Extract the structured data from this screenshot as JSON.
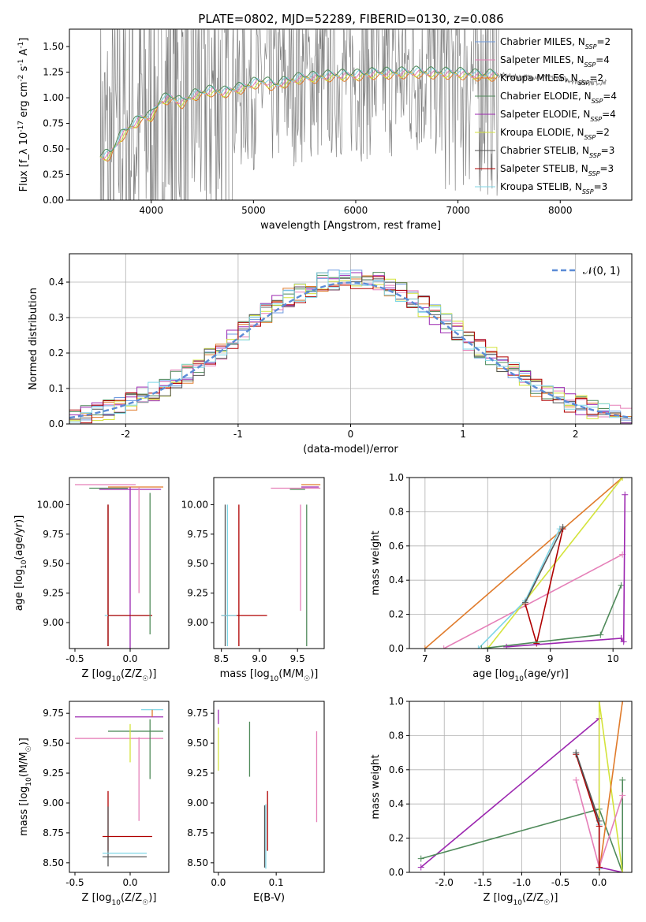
{
  "figure": {
    "title": "PLATE=0802, MJD=52289, FIBERID=0130, z=0.086"
  },
  "colors": {
    "data": "#808080",
    "normal_curve": "#5b8bd6",
    "models": [
      "#6f9be0",
      "#e57fb8",
      "#e07b2b",
      "#4f8a5a",
      "#9c27b0",
      "#d4e33c",
      "#555555",
      "#b00000",
      "#7fd6e6"
    ]
  },
  "chart_data": [
    {
      "id": "spectrum",
      "type": "line",
      "xlabel": "wavelength [Angstrom, rest frame]",
      "ylabel": "Flux [f_λ 10^-17 erg cm^-2 s^-1 A^-1]",
      "xlim": [
        3200,
        8700
      ],
      "ylim": [
        0,
        1.67
      ],
      "xticks": [
        4000,
        5000,
        6000,
        7000,
        8000
      ],
      "yticks": [
        0.0,
        0.25,
        0.5,
        0.75,
        1.0,
        1.25,
        1.5
      ],
      "legend_position": "right",
      "series": [
        {
          "name": "Chabrier MILES, N_SSP=2"
        },
        {
          "name": "Salpeter MILES, N_SSP=4"
        },
        {
          "name": "Kroupa MILES, N_SSP=2"
        },
        {
          "name": "Chabrier ELODIE, N_SSP=4"
        },
        {
          "name": "Salpeter ELODIE, N_SSP=4"
        },
        {
          "name": "Kroupa ELODIE, N_SSP=2"
        },
        {
          "name": "Chabrier STELIB, N_SSP=3"
        },
        {
          "name": "Salpeter STELIB, N_SSP=3"
        },
        {
          "name": "Kroupa STELIB, N_SSP=3"
        }
      ],
      "model_continuum": [
        [
          3500,
          0.42
        ],
        [
          3600,
          0.45
        ],
        [
          3700,
          0.62
        ],
        [
          3800,
          0.72
        ],
        [
          3900,
          0.8
        ],
        [
          4000,
          0.82
        ],
        [
          4100,
          0.98
        ],
        [
          4200,
          1.0
        ],
        [
          4300,
          0.95
        ],
        [
          4400,
          1.02
        ],
        [
          4500,
          1.05
        ],
        [
          4600,
          1.07
        ],
        [
          4700,
          1.05
        ],
        [
          4800,
          1.08
        ],
        [
          4900,
          1.1
        ],
        [
          5000,
          1.14
        ],
        [
          5100,
          1.16
        ],
        [
          5200,
          1.12
        ],
        [
          5300,
          1.15
        ],
        [
          5400,
          1.18
        ],
        [
          5500,
          1.2
        ],
        [
          5600,
          1.2
        ],
        [
          5700,
          1.21
        ],
        [
          5800,
          1.22
        ],
        [
          5900,
          1.22
        ],
        [
          6000,
          1.22
        ],
        [
          6200,
          1.24
        ],
        [
          6400,
          1.24
        ],
        [
          6600,
          1.25
        ],
        [
          6800,
          1.24
        ],
        [
          7000,
          1.24
        ],
        [
          7200,
          1.22
        ],
        [
          7400,
          1.22
        ],
        [
          7600,
          1.2
        ],
        [
          7800,
          1.2
        ],
        [
          8000,
          1.19
        ],
        [
          8200,
          1.15
        ],
        [
          8400,
          1.15
        ]
      ]
    },
    {
      "id": "residuals",
      "type": "line",
      "xlabel": "(data-model)/error",
      "ylabel": "Normed distribution",
      "xlim": [
        -2.5,
        2.5
      ],
      "ylim": [
        0,
        0.48
      ],
      "xticks": [
        -2,
        -1,
        0,
        1,
        2
      ],
      "yticks": [
        0.0,
        0.1,
        0.2,
        0.3,
        0.4
      ],
      "legend": "𝒩(0, 1)",
      "legend_position": "top-right",
      "grid": true
    },
    {
      "id": "age-vs-Z",
      "type": "scatter",
      "xlabel": "Z [log10(Z/Z☉)]",
      "ylabel": "age  [log10(age/yr)]",
      "xlim": [
        -0.55,
        0.35
      ],
      "ylim": [
        8.78,
        10.23
      ],
      "xticks": [
        -0.5,
        0.0
      ],
      "yticks": [
        9.0,
        9.25,
        9.5,
        9.75,
        10.0
      ],
      "points": [
        {
          "x": 0.0,
          "xerr": [
            0.28,
            0.28
          ],
          "y": 10.13,
          "yerr": [
            0.0,
            0.0
          ],
          "c": 4
        },
        {
          "x": 0.05,
          "xerr": [
            0.55,
            0.0
          ],
          "y": 10.17,
          "yerr": [
            0.0,
            0.0
          ],
          "c": 1
        },
        {
          "x": 0.05,
          "xerr": [
            0.25,
            0.25
          ],
          "y": 10.15,
          "yerr": [
            0.0,
            0.0
          ],
          "c": 2
        },
        {
          "x": -0.02,
          "xerr": [
            0.35,
            0.0
          ],
          "y": 10.14,
          "yerr": [
            0.0,
            0.0
          ],
          "c": 3
        },
        {
          "x": 0.08,
          "xerr": [
            0.0,
            0.0
          ],
          "y": 9.7,
          "yerr": [
            0.45,
            0.45
          ],
          "c": 1
        },
        {
          "x": -0.2,
          "xerr": [
            0.0,
            0.0
          ],
          "y": 9.4,
          "yerr": [
            0.6,
            0.6
          ],
          "c": 6
        },
        {
          "x": -0.2,
          "xerr": [
            0.0,
            0.0
          ],
          "y": 9.4,
          "yerr": [
            0.6,
            0.6
          ],
          "c": 7
        },
        {
          "x": 0.0,
          "xerr": [
            0.0,
            0.0
          ],
          "y": 9.45,
          "yerr": [
            0.7,
            0.7
          ],
          "c": 4
        },
        {
          "x": -0.05,
          "xerr": [
            0.18,
            0.22
          ],
          "y": 9.06,
          "yerr": [
            0.0,
            0.0
          ],
          "c": 8
        },
        {
          "x": -0.05,
          "xerr": [
            0.15,
            0.25
          ],
          "y": 9.06,
          "yerr": [
            0.0,
            0.0
          ],
          "c": 7
        },
        {
          "x": 0.18,
          "xerr": [
            0.0,
            0.0
          ],
          "y": 9.5,
          "yerr": [
            0.6,
            0.6
          ],
          "c": 3
        }
      ]
    },
    {
      "id": "age-vs-mass",
      "type": "scatter",
      "xlabel": "mass [log10(M/M☉)]",
      "ylabel": "",
      "xlim": [
        8.4,
        9.85
      ],
      "ylim": [
        8.78,
        10.23
      ],
      "xticks": [
        8.5,
        9.0,
        9.5
      ],
      "yticks": [
        9.0,
        9.25,
        9.5,
        9.75,
        10.0
      ],
      "points": [
        {
          "x": 9.75,
          "xerr": [
            0.2,
            0.05
          ],
          "y": 10.17,
          "yerr": [
            0.0,
            0.0
          ],
          "c": 2
        },
        {
          "x": 9.7,
          "xerr": [
            0.15,
            0.08
          ],
          "y": 10.15,
          "yerr": [
            0.0,
            0.0
          ],
          "c": 4
        },
        {
          "x": 9.5,
          "xerr": [
            0.35,
            0.3
          ],
          "y": 10.14,
          "yerr": [
            0.0,
            0.0
          ],
          "c": 1
        },
        {
          "x": 9.5,
          "xerr": [
            0.1,
            0.1
          ],
          "y": 10.13,
          "yerr": [
            0.0,
            0.0
          ],
          "c": 3
        },
        {
          "x": 9.54,
          "xerr": [
            0.0,
            0.0
          ],
          "y": 9.55,
          "yerr": [
            0.45,
            0.45
          ],
          "c": 1
        },
        {
          "x": 9.62,
          "xerr": [
            0.0,
            0.0
          ],
          "y": 9.4,
          "yerr": [
            0.6,
            0.6
          ],
          "c": 3
        },
        {
          "x": 8.55,
          "xerr": [
            0.0,
            0.0
          ],
          "y": 9.4,
          "yerr": [
            0.6,
            0.6
          ],
          "c": 6
        },
        {
          "x": 8.58,
          "xerr": [
            0.0,
            0.0
          ],
          "y": 9.4,
          "yerr": [
            0.6,
            0.6
          ],
          "c": 8
        },
        {
          "x": 8.73,
          "xerr": [
            0.0,
            0.0
          ],
          "y": 9.4,
          "yerr": [
            0.6,
            0.6
          ],
          "c": 7
        },
        {
          "x": 8.75,
          "xerr": [
            0.25,
            0.35
          ],
          "y": 9.06,
          "yerr": [
            0.0,
            0.0
          ],
          "c": 7
        },
        {
          "x": 8.6,
          "xerr": [
            0.1,
            0.1
          ],
          "y": 9.06,
          "yerr": [
            0.0,
            0.0
          ],
          "c": 8
        }
      ]
    },
    {
      "id": "massweight-vs-age",
      "type": "line",
      "xlabel": "age  [log10(age/yr)]",
      "ylabel": "mass weight",
      "xlim": [
        6.75,
        10.3
      ],
      "ylim": [
        0,
        1.0
      ],
      "xticks": [
        7,
        8,
        9,
        10
      ],
      "yticks": [
        0.0,
        0.2,
        0.4,
        0.6,
        0.8,
        1.0
      ],
      "grid": true,
      "series": [
        {
          "c": 2,
          "x": [
            7.0,
            10.15
          ],
          "y": [
            0.0,
            1.0
          ]
        },
        {
          "c": 1,
          "x": [
            7.3,
            10.15
          ],
          "y": [
            0.0,
            0.55
          ]
        },
        {
          "c": 5,
          "x": [
            8.0,
            10.15
          ],
          "y": [
            0.0,
            1.0
          ]
        },
        {
          "c": 8,
          "x": [
            7.85,
            8.6,
            9.15
          ],
          "y": [
            0.0,
            0.28,
            0.7
          ]
        },
        {
          "c": 7,
          "x": [
            8.6,
            8.78,
            9.2
          ],
          "y": [
            0.26,
            0.03,
            0.7
          ]
        },
        {
          "c": 3,
          "x": [
            7.9,
            9.8,
            10.13
          ],
          "y": [
            0.0,
            0.08,
            0.37
          ]
        },
        {
          "c": 4,
          "x": [
            8.3,
            10.13,
            10.17,
            10.19
          ],
          "y": [
            0.01,
            0.06,
            0.04,
            0.9
          ]
        },
        {
          "c": 6,
          "x": [
            8.6,
            9.2
          ],
          "y": [
            0.27,
            0.71
          ]
        }
      ]
    },
    {
      "id": "mass-vs-Z",
      "type": "scatter",
      "xlabel": "Z [log10(Z/Z☉)]",
      "ylabel": "mass [log10(M/M☉)]",
      "xlim": [
        -0.55,
        0.35
      ],
      "ylim": [
        8.42,
        9.85
      ],
      "xticks": [
        -0.5,
        0.0
      ],
      "yticks": [
        8.5,
        8.75,
        9.0,
        9.25,
        9.5,
        9.75
      ],
      "points": [
        {
          "x": -0.1,
          "xerr": [
            0.4,
            0.4
          ],
          "y": 9.72,
          "yerr": [
            0.0,
            0.0
          ],
          "c": 4
        },
        {
          "x": 0.0,
          "xerr": [
            0.5,
            0.3
          ],
          "y": 9.54,
          "yerr": [
            0.0,
            0.0
          ],
          "c": 1
        },
        {
          "x": 0.05,
          "xerr": [
            0.25,
            0.25
          ],
          "y": 9.6,
          "yerr": [
            0.0,
            0.0
          ],
          "c": 3
        },
        {
          "x": 0.2,
          "xerr": [
            0.1,
            0.1
          ],
          "y": 9.78,
          "yerr": [
            0.0,
            0.0
          ],
          "c": 8
        },
        {
          "x": 0.2,
          "xerr": [
            0.0,
            0.0
          ],
          "y": 9.75,
          "yerr": [
            0.03,
            0.03
          ],
          "c": 2
        },
        {
          "x": 0.0,
          "xerr": [
            0.0,
            0.0
          ],
          "y": 9.5,
          "yerr": [
            0.16,
            0.16
          ],
          "c": 5
        },
        {
          "x": 0.08,
          "xerr": [
            0.0,
            0.0
          ],
          "y": 9.2,
          "yerr": [
            0.35,
            0.35
          ],
          "c": 1
        },
        {
          "x": 0.18,
          "xerr": [
            0.0,
            0.0
          ],
          "y": 9.45,
          "yerr": [
            0.25,
            0.25
          ],
          "c": 3
        },
        {
          "x": -0.2,
          "xerr": [
            0.0,
            0.0
          ],
          "y": 8.85,
          "yerr": [
            0.25,
            0.25
          ],
          "c": 7
        },
        {
          "x": -0.2,
          "xerr": [
            0.0,
            0.0
          ],
          "y": 8.72,
          "yerr": [
            0.25,
            0.25
          ],
          "c": 6
        },
        {
          "x": -0.05,
          "xerr": [
            0.2,
            0.25
          ],
          "y": 8.72,
          "yerr": [
            0.0,
            0.0
          ],
          "c": 7
        },
        {
          "x": -0.05,
          "xerr": [
            0.2,
            0.2
          ],
          "y": 8.58,
          "yerr": [
            0.0,
            0.0
          ],
          "c": 8
        },
        {
          "x": -0.05,
          "xerr": [
            0.2,
            0.2
          ],
          "y": 8.55,
          "yerr": [
            0.0,
            0.0
          ],
          "c": 6
        }
      ]
    },
    {
      "id": "mass-vs-ebv",
      "type": "scatter",
      "xlabel": "E(B-V)",
      "ylabel": "",
      "xlim": [
        -0.008,
        0.183
      ],
      "ylim": [
        8.42,
        9.85
      ],
      "xticks": [
        0.0,
        0.1
      ],
      "yticks": [
        8.5,
        8.75,
        9.0,
        9.25,
        9.5,
        9.75
      ],
      "points": [
        {
          "x": 0.0,
          "y": 9.72,
          "yerr": [
            0.06,
            0.06
          ],
          "c": 4
        },
        {
          "x": 0.0,
          "y": 9.45,
          "yerr": [
            0.18,
            0.18
          ],
          "c": 5
        },
        {
          "x": 0.054,
          "y": 9.45,
          "yerr": [
            0.23,
            0.23
          ],
          "c": 3
        },
        {
          "x": 0.085,
          "y": 8.85,
          "yerr": [
            0.25,
            0.25
          ],
          "c": 7
        },
        {
          "x": 0.082,
          "y": 8.72,
          "yerr": [
            0.27,
            0.27
          ],
          "c": 8
        },
        {
          "x": 0.08,
          "y": 8.72,
          "yerr": [
            0.26,
            0.26
          ],
          "c": 6
        },
        {
          "x": 0.17,
          "y": 9.22,
          "yerr": [
            0.38,
            0.38
          ],
          "c": 1
        }
      ]
    },
    {
      "id": "massweight-vs-Z",
      "type": "line",
      "xlabel": "Z [log10(Z/Z☉)]",
      "ylabel": "mass weight",
      "xlim": [
        -2.45,
        0.42
      ],
      "ylim": [
        0,
        1.0
      ],
      "xticks": [
        -2.0,
        -1.5,
        -1.0,
        -0.5,
        0.0
      ],
      "yticks": [
        0.0,
        0.2,
        0.4,
        0.6,
        0.8,
        1.0
      ],
      "grid": true,
      "series": [
        {
          "c": 4,
          "x": [
            -2.3,
            0.0,
            0.0,
            0.3
          ],
          "y": [
            0.03,
            0.9,
            0.03,
            0.0
          ]
        },
        {
          "c": 3,
          "x": [
            -2.3,
            0.0,
            0.3,
            0.3
          ],
          "y": [
            0.08,
            0.37,
            0.0,
            0.54
          ]
        },
        {
          "c": 5,
          "x": [
            0.0,
            0.0,
            0.3
          ],
          "y": [
            0.0,
            1.0,
            0.0
          ]
        },
        {
          "c": 2,
          "x": [
            0.0,
            0.3
          ],
          "y": [
            0.0,
            1.0
          ]
        },
        {
          "c": 1,
          "x": [
            -0.3,
            0.0,
            0.3
          ],
          "y": [
            0.54,
            0.03,
            0.45
          ]
        },
        {
          "c": 8,
          "x": [
            -0.3,
            0.0,
            0.0
          ],
          "y": [
            0.7,
            0.28,
            0.02
          ]
        },
        {
          "c": 7,
          "x": [
            -0.3,
            0.0,
            0.0
          ],
          "y": [
            0.69,
            0.27,
            0.03
          ]
        },
        {
          "c": 6,
          "x": [
            -0.3,
            0.0
          ],
          "y": [
            0.7,
            0.3
          ]
        }
      ]
    }
  ]
}
